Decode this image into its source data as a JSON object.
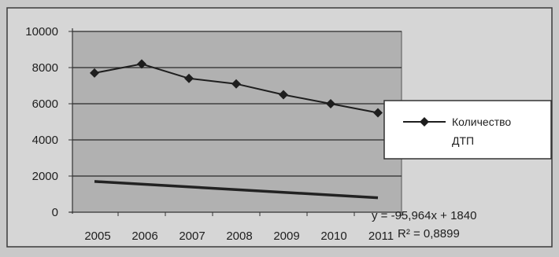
{
  "chart_data": {
    "type": "line",
    "categories": [
      "2005",
      "2006",
      "2007",
      "2008",
      "2009",
      "2010",
      "2011"
    ],
    "series": [
      {
        "name": "Количество ДТП",
        "values": [
          7700,
          8200,
          7400,
          7100,
          6500,
          6000,
          5500
        ],
        "color": "#1e1e1e",
        "marker": "diamond"
      }
    ],
    "trendline": {
      "equation": "y = -95,964x + 1840",
      "r_squared": "R² = 0,8899",
      "start_value": 1700,
      "end_value": 800,
      "color": "#222222"
    },
    "yticks": [
      "0",
      "2000",
      "4000",
      "6000",
      "8000",
      "10000"
    ],
    "ylim": [
      0,
      10000
    ],
    "grid": true,
    "legend": {
      "position": "right",
      "lines": [
        "Количество",
        "ДТП"
      ]
    },
    "colors": {
      "plot_background": "#b1b1b1",
      "chart_background": "#d6d6d6",
      "page_background": "#c9c9c9",
      "legend_background": "#ffffff"
    }
  }
}
